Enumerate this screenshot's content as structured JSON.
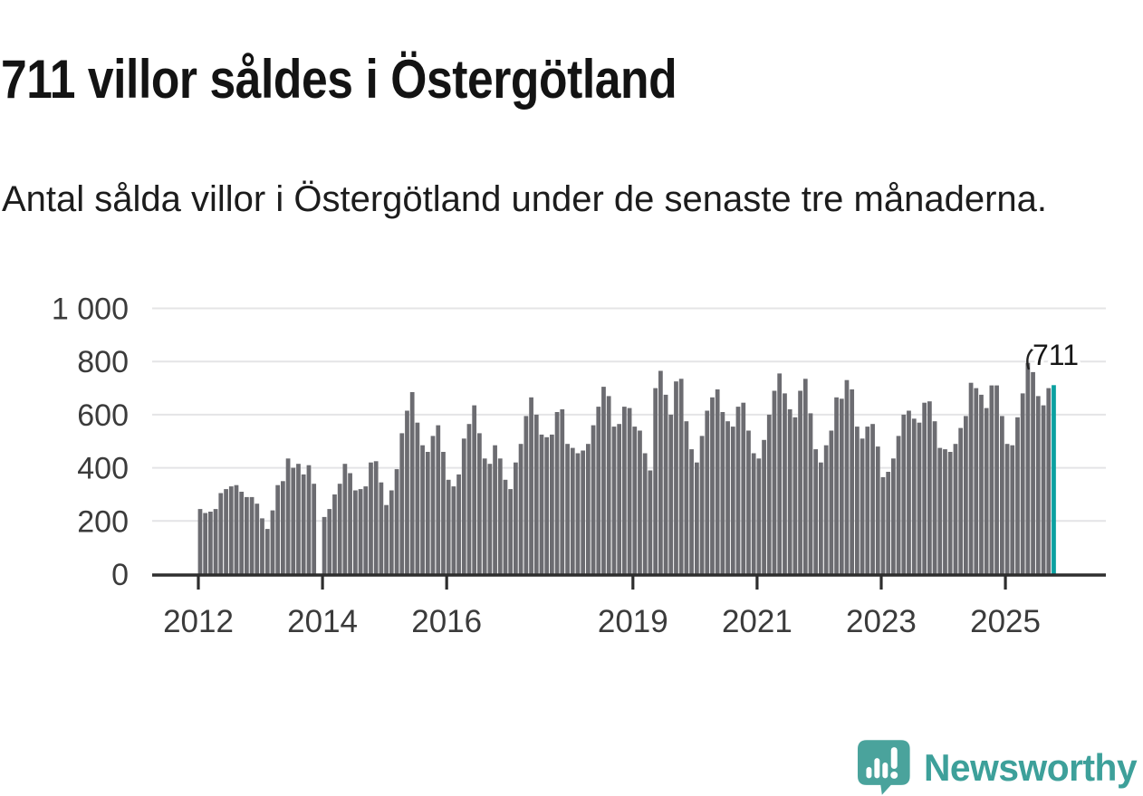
{
  "header": {
    "title": "711 villor såldes i Östergötland",
    "subtitle": "Antal sålda villor i Östergötland under de senaste tre månaderna."
  },
  "annotation": {
    "latest_value_label": "711"
  },
  "branding": {
    "wordmark": "Newsworthy",
    "logo_icon": "newsworthy-speech-bubble-bar-chart-icon"
  },
  "colors": {
    "bar": "#6c6c71",
    "highlight_bar": "#0aa0a0",
    "gridline": "#e4e4e6",
    "axis": "#2e2e2e",
    "tick_label": "#3b3b3b",
    "annotation_text": "#161616",
    "brand_teal": "#4aa39c",
    "background": "#ffffff"
  },
  "chart_data": {
    "type": "bar",
    "title": "711 villor såldes i Östergötland",
    "xlabel": "",
    "ylabel": "",
    "x_start": "2012-01",
    "frequency": "monthly",
    "ylim": [
      0,
      1000
    ],
    "grid": "horizontal",
    "legend": "none",
    "missing_months": [
      "2013-12"
    ],
    "values": [
      245,
      230,
      235,
      245,
      305,
      320,
      330,
      335,
      310,
      290,
      290,
      265,
      210,
      170,
      240,
      335,
      350,
      435,
      400,
      415,
      375,
      410,
      340,
      0,
      215,
      245,
      300,
      340,
      415,
      380,
      315,
      320,
      330,
      420,
      425,
      345,
      260,
      315,
      395,
      530,
      615,
      685,
      570,
      485,
      460,
      520,
      560,
      460,
      355,
      330,
      375,
      510,
      565,
      635,
      530,
      435,
      415,
      485,
      435,
      355,
      320,
      420,
      490,
      595,
      665,
      600,
      525,
      515,
      525,
      610,
      620,
      490,
      475,
      455,
      465,
      490,
      560,
      630,
      705,
      670,
      555,
      565,
      630,
      625,
      555,
      540,
      455,
      390,
      700,
      765,
      675,
      600,
      725,
      735,
      575,
      470,
      420,
      520,
      615,
      665,
      695,
      610,
      575,
      555,
      630,
      645,
      540,
      455,
      435,
      505,
      600,
      690,
      755,
      680,
      620,
      590,
      690,
      735,
      605,
      470,
      420,
      485,
      540,
      665,
      660,
      730,
      695,
      555,
      510,
      555,
      565,
      480,
      365,
      385,
      435,
      520,
      600,
      615,
      585,
      570,
      645,
      650,
      575,
      475,
      470,
      460,
      490,
      550,
      595,
      720,
      700,
      675,
      625,
      710,
      710,
      595,
      490,
      485,
      590,
      680,
      795,
      760,
      670,
      635,
      700,
      711
    ],
    "highlight": {
      "index": 165,
      "value": 711,
      "label": "711"
    },
    "xticks": [
      {
        "label": "2012",
        "month_index": 0
      },
      {
        "label": "2014",
        "month_index": 24
      },
      {
        "label": "2016",
        "month_index": 48
      },
      {
        "label": "2019",
        "month_index": 84
      },
      {
        "label": "2021",
        "month_index": 108
      },
      {
        "label": "2023",
        "month_index": 132
      },
      {
        "label": "2025",
        "month_index": 156
      }
    ],
    "yticks": [
      {
        "value": 0,
        "label": "0"
      },
      {
        "value": 200,
        "label": "200"
      },
      {
        "value": 400,
        "label": "400"
      },
      {
        "value": 600,
        "label": "600"
      },
      {
        "value": 800,
        "label": "800"
      },
      {
        "value": 1000,
        "label": "1 000"
      }
    ]
  }
}
